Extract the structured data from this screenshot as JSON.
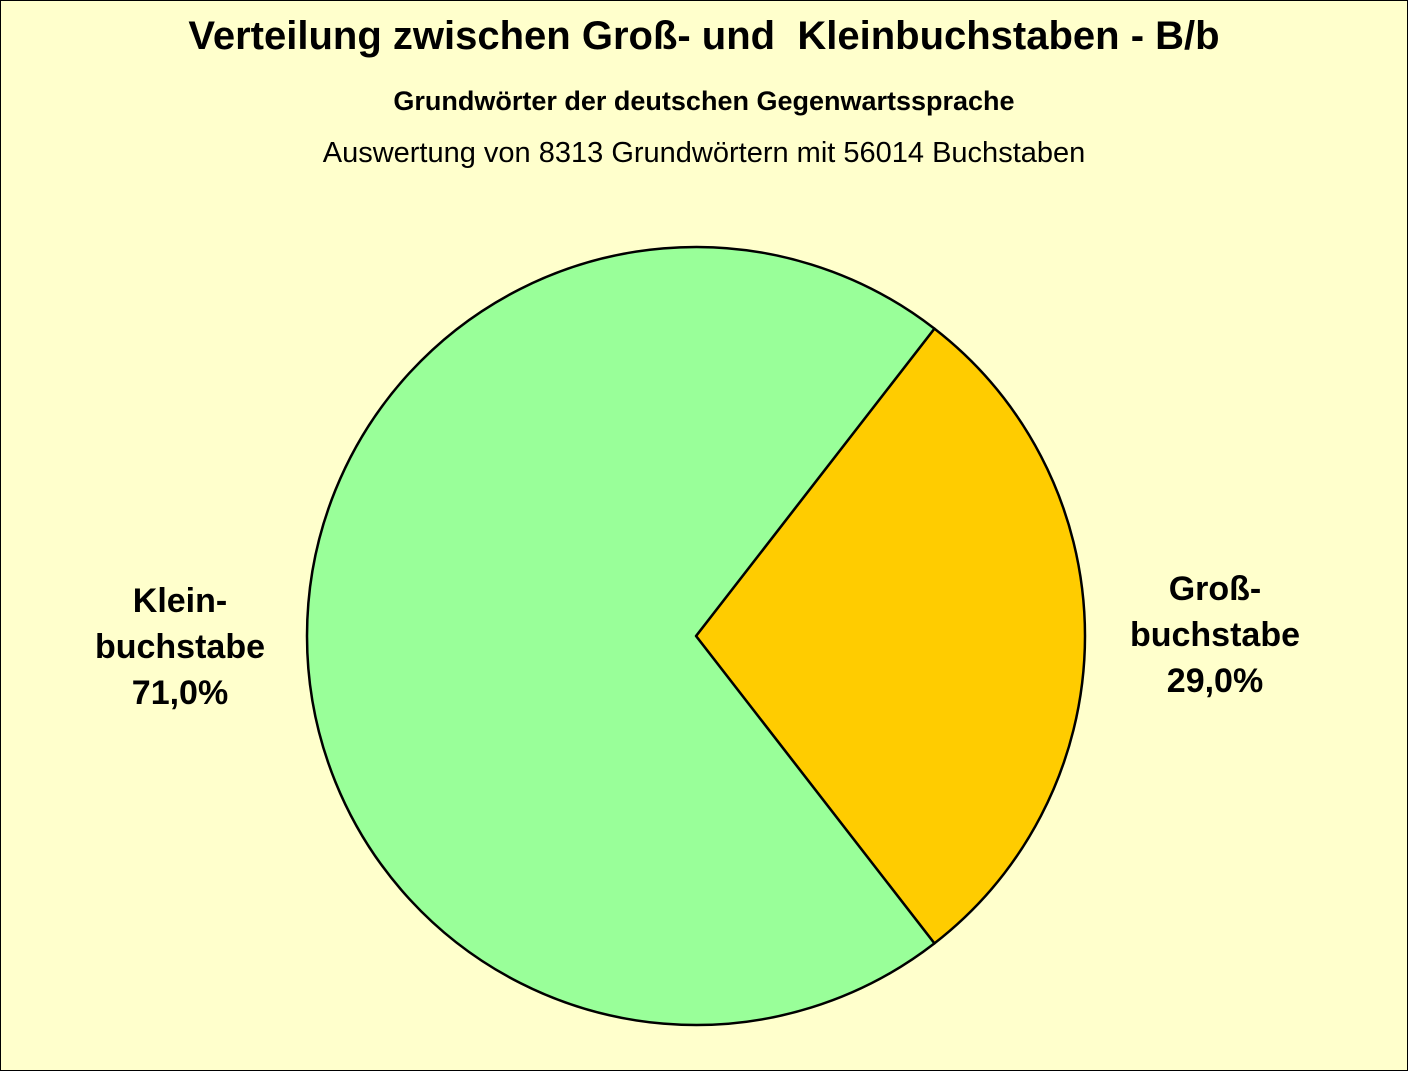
{
  "chart_data": {
    "type": "pie",
    "title": "Verteilung zwischen Groß- und  Kleinbuchstaben - B/b",
    "subtitle": "Grundwörter der deutschen Gegenwartssprache",
    "note": "Auswertung von 8313 Grundwörtern mit 56014 Buchstaben",
    "slices": [
      {
        "label_lines": [
          "Groß-",
          "buchstabe"
        ],
        "value": 29.0,
        "value_label": "29,0%",
        "color": "#ffcc00"
      },
      {
        "label_lines": [
          "Klein-",
          "buchstabe"
        ],
        "value": 71.0,
        "value_label": "71,0%",
        "color": "#99ff99"
      }
    ]
  },
  "colors": {
    "background": "#ffffcc",
    "outline": "#000000"
  }
}
